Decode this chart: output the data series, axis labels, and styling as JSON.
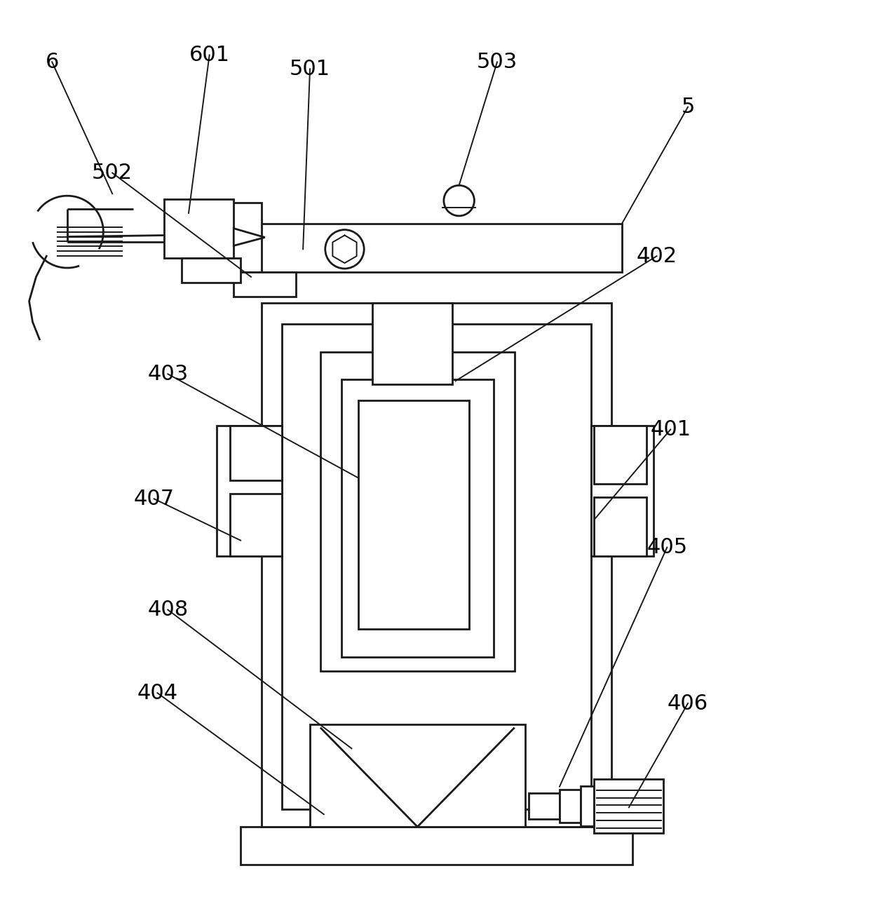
{
  "bg_color": "#ffffff",
  "line_color": "#1a1a1a",
  "label_color": "#000000",
  "label_fontsize": 22,
  "fig_width": 12.45,
  "fig_height": 13.02
}
